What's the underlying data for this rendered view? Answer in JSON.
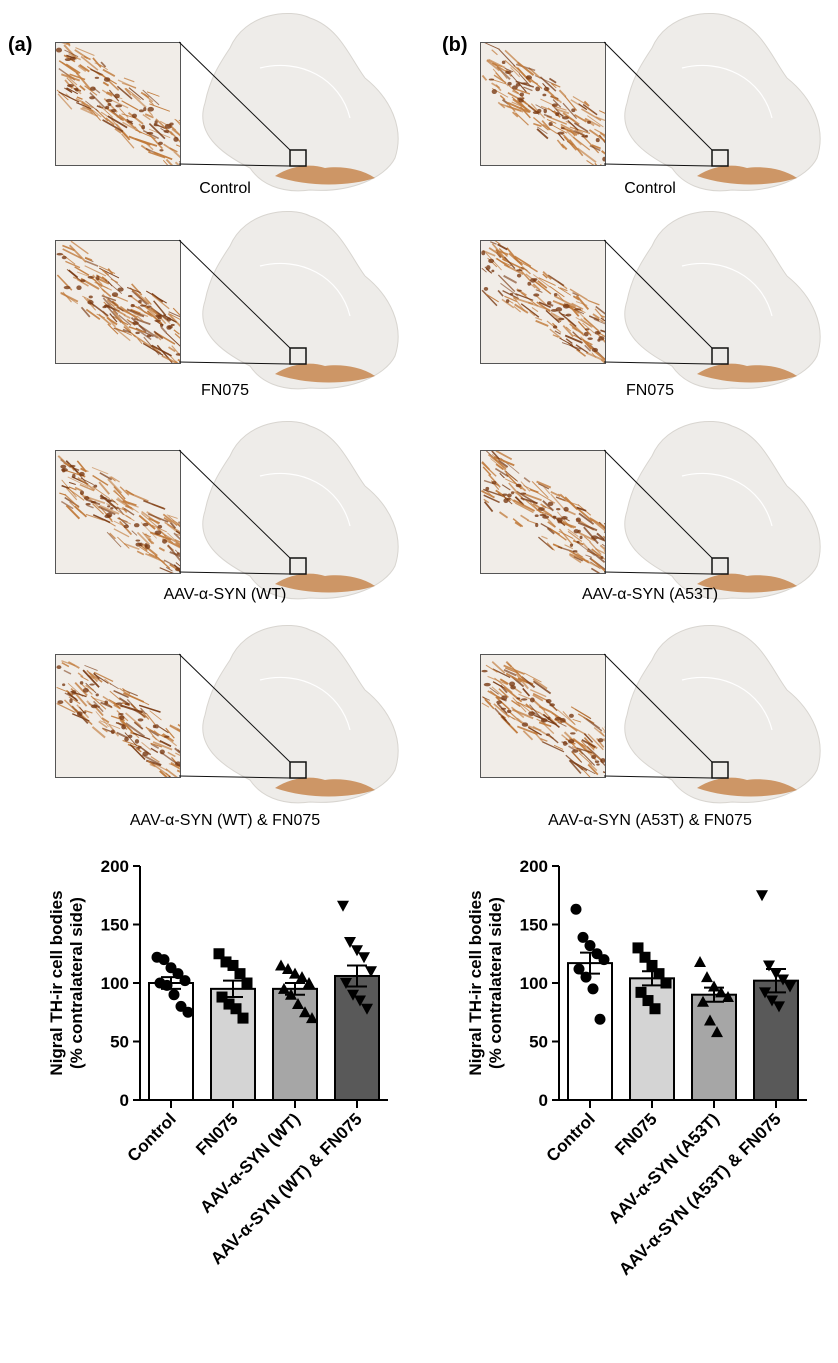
{
  "figure": {
    "panels": [
      {
        "label": "(a)",
        "captions": [
          "Control",
          "FN075",
          "AAV-α-SYN (WT)",
          "AAV-α-SYN (WT) & FN075"
        ]
      },
      {
        "label": "(b)",
        "captions": [
          "Control",
          "FN075",
          "AAV-α-SYN (A53T)",
          "AAV-α-SYN (A53T) & FN075"
        ]
      }
    ]
  },
  "colors": {
    "tissue": "#eeece9",
    "stain": "#c17a3a",
    "stain_dark": "#7a3b14",
    "bar_fills": [
      "#ffffff",
      "#d4d4d4",
      "#a6a6a6",
      "#595959"
    ]
  },
  "chart_data": [
    {
      "type": "bar",
      "ylabel_line1": "Nigral TH-ir cell bodies",
      "ylabel_line2": "(% contralateral side)",
      "ylim": [
        0,
        200
      ],
      "yticks": [
        0,
        50,
        100,
        150,
        200
      ],
      "categories": [
        "Control",
        "FN075",
        "AAV-α-SYN (WT)",
        "AAV-α-SYN (WT) & FN075"
      ],
      "values": [
        100,
        95,
        95,
        106
      ],
      "sem": [
        5,
        7,
        5,
        9
      ],
      "markers": [
        "circle",
        "square",
        "triangle-up",
        "triangle-down"
      ],
      "points": [
        [
          122,
          120,
          113,
          108,
          102,
          100,
          98,
          90,
          80,
          75
        ],
        [
          125,
          118,
          115,
          108,
          100,
          88,
          82,
          78,
          70
        ],
        [
          115,
          112,
          108,
          105,
          100,
          95,
          90,
          82,
          75,
          70
        ],
        [
          166,
          135,
          128,
          122,
          110,
          100,
          90,
          85,
          78
        ]
      ]
    },
    {
      "type": "bar",
      "ylabel_line1": "Nigral TH-ir cell bodies",
      "ylabel_line2": "(% contralateral side)",
      "ylim": [
        0,
        200
      ],
      "yticks": [
        0,
        50,
        100,
        150,
        200
      ],
      "categories": [
        "Control",
        "FN075",
        "AAV-α-SYN (A53T)",
        "AAV-α-SYN (A53T) & FN075"
      ],
      "values": [
        117,
        104,
        90,
        102
      ],
      "sem": [
        9,
        6,
        6,
        10
      ],
      "markers": [
        "circle",
        "square",
        "triangle-up",
        "triangle-down"
      ],
      "points": [
        [
          163,
          139,
          132,
          125,
          120,
          112,
          105,
          95,
          69
        ],
        [
          130,
          122,
          115,
          108,
          100,
          92,
          85,
          78
        ],
        [
          118,
          105,
          97,
          92,
          88,
          84,
          68,
          58
        ],
        [
          175,
          115,
          108,
          103,
          97,
          92,
          85,
          80
        ]
      ]
    }
  ]
}
